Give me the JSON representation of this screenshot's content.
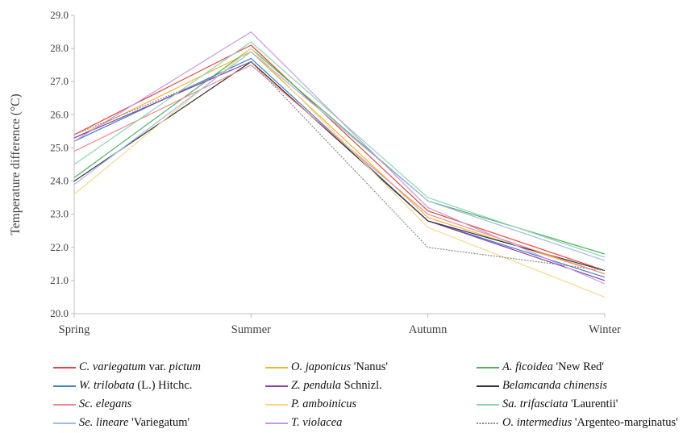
{
  "chart_data": {
    "type": "line",
    "title": "",
    "xlabel": "",
    "ylabel": "Temperature difference (°C)",
    "categories": [
      "Spring",
      "Summer",
      "Autumn",
      "Winter"
    ],
    "ylim": [
      20.0,
      29.0
    ],
    "yticks": [
      "20.0",
      "21.0",
      "22.0",
      "23.0",
      "24.0",
      "25.0",
      "26.0",
      "27.0",
      "28.0",
      "29.0"
    ],
    "grid": false,
    "legend_position": "bottom",
    "series": [
      {
        "name": "C. variegatum var. pictum",
        "name_parts": [
          {
            "t": "C. variegatum",
            "i": true
          },
          {
            "t": " var. ",
            "i": false
          },
          {
            "t": "pictum",
            "i": true
          }
        ],
        "color": "#e8423f",
        "values": [
          25.4,
          28.1,
          23.1,
          21.3
        ]
      },
      {
        "name": "O. japonicus 'Nanus'",
        "name_parts": [
          {
            "t": "O. japonicus",
            "i": true
          },
          {
            "t": " 'Nanus'",
            "i": false
          }
        ],
        "color": "#f2b233",
        "values": [
          25.3,
          27.9,
          22.9,
          21.2
        ]
      },
      {
        "name": "A. ficoidea 'New Red'",
        "name_parts": [
          {
            "t": "A. ficoidea",
            "i": true
          },
          {
            "t": " 'New Red'",
            "i": false
          }
        ],
        "color": "#4db35e",
        "values": [
          24.1,
          28.0,
          23.4,
          21.8
        ]
      },
      {
        "name": "W. trilobata (L.) Hitchc.",
        "name_parts": [
          {
            "t": "W. trilobata",
            "i": true
          },
          {
            "t": " (L.) Hitchc.",
            "i": false
          }
        ],
        "color": "#3f7fd1",
        "values": [
          25.2,
          27.7,
          22.8,
          21.1
        ]
      },
      {
        "name": "Z. pendula Schnizl.",
        "name_parts": [
          {
            "t": "Z. pendula",
            "i": true
          },
          {
            "t": " Schnizl.",
            "i": false
          }
        ],
        "color": "#8a3fb0",
        "values": [
          25.3,
          27.6,
          22.8,
          21.0
        ]
      },
      {
        "name": "Belamcanda chinensis",
        "name_parts": [
          {
            "t": "Belamcanda chinensis",
            "i": true
          }
        ],
        "color": "#333333",
        "values": [
          24.0,
          27.6,
          22.8,
          21.3
        ]
      },
      {
        "name": "Sc. elegans",
        "name_parts": [
          {
            "t": "Sc. elegans",
            "i": true
          }
        ],
        "color": "#f08a8a",
        "values": [
          24.9,
          27.5,
          23.0,
          21.2
        ]
      },
      {
        "name": "P. amboinicus",
        "name_parts": [
          {
            "t": "P. amboinicus",
            "i": true
          }
        ],
        "color": "#f7d88a",
        "values": [
          23.6,
          28.0,
          22.6,
          20.5
        ]
      },
      {
        "name": "Sa. trifasciata 'Laurentii'",
        "name_parts": [
          {
            "t": "Sa. trifasciata",
            "i": true
          },
          {
            "t": " 'Laurentii'",
            "i": false
          }
        ],
        "color": "#8fd4b0",
        "values": [
          24.5,
          28.2,
          23.5,
          21.7
        ]
      },
      {
        "name": "Se. lineare 'Variegatum'",
        "name_parts": [
          {
            "t": "Se. lineare",
            "i": true
          },
          {
            "t": " 'Variegatum'",
            "i": false
          }
        ],
        "color": "#9fb8e8",
        "values": [
          23.9,
          27.9,
          23.4,
          21.6
        ]
      },
      {
        "name": "T. violacea",
        "name_parts": [
          {
            "t": "T. violacea",
            "i": true
          }
        ],
        "color": "#c49ae0",
        "values": [
          25.2,
          28.5,
          23.2,
          20.9
        ]
      },
      {
        "name": "O. intermedius 'Argenteo-marginatus'",
        "name_parts": [
          {
            "t": "O. intermedius",
            "i": true
          },
          {
            "t": " 'Argenteo-marginatus'",
            "i": false
          }
        ],
        "color": "#8a8a8a",
        "dashed": true,
        "values": [
          25.4,
          27.6,
          22.0,
          21.3
        ]
      }
    ]
  }
}
